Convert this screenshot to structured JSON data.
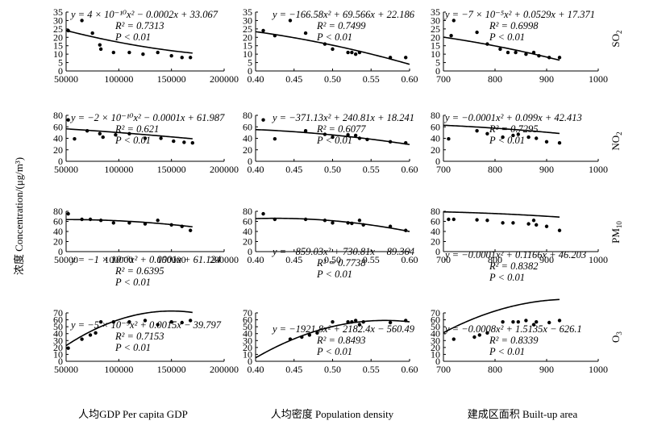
{
  "figure": {
    "y_axis_label": "浓度 Concentration/(μg/m³)",
    "x_axis_labels": [
      "人均GDP Per capita GDP",
      "人均密度 Population density",
      "建成区面积 Built-up area"
    ],
    "row_labels": [
      {
        "base": "SO",
        "sub": "2"
      },
      {
        "base": "NO",
        "sub": "2"
      },
      {
        "base": "PM",
        "sub": "10"
      },
      {
        "base": "O",
        "sub": "3"
      }
    ]
  },
  "chart_data": [
    {
      "type": "scatter",
      "id": "gdp-so2",
      "row": 0,
      "col": 0,
      "xlim": [
        50000,
        200000
      ],
      "ylim": [
        0,
        35
      ],
      "xticks": [
        "50000",
        "100000",
        "150000",
        "200000"
      ],
      "yticks": [
        "0",
        "5",
        "10",
        "15",
        "20",
        "25",
        "30",
        "35"
      ],
      "points": [
        [
          52000,
          24
        ],
        [
          65000,
          30
        ],
        [
          75000,
          22.5
        ],
        [
          82000,
          15.5
        ],
        [
          83000,
          13
        ],
        [
          95000,
          11
        ],
        [
          110000,
          11
        ],
        [
          123000,
          10
        ],
        [
          137000,
          11
        ],
        [
          150000,
          9
        ],
        [
          160000,
          8
        ],
        [
          168000,
          8
        ]
      ],
      "fit": {
        "a": 4e-10,
        "b": -0.0002,
        "c": 33.067
      },
      "equation_lines": [
        "y = 4 × 10⁻¹⁰x² − 0.0002x + 33.067",
        "R² = 0.7313",
        "P < 0.01"
      ]
    },
    {
      "type": "scatter",
      "id": "density-so2",
      "row": 0,
      "col": 1,
      "xlim": [
        0.4,
        0.6
      ],
      "ylim": [
        0,
        35
      ],
      "xticks": [
        "0.40",
        "0.45",
        "0.50",
        "0.55",
        "0.60"
      ],
      "yticks": [
        "0",
        "5",
        "10",
        "15",
        "20",
        "25",
        "30",
        "35"
      ],
      "points": [
        [
          0.41,
          24
        ],
        [
          0.425,
          21
        ],
        [
          0.445,
          30
        ],
        [
          0.465,
          22.5
        ],
        [
          0.49,
          16
        ],
        [
          0.5,
          13
        ],
        [
          0.52,
          11
        ],
        [
          0.525,
          11
        ],
        [
          0.53,
          10
        ],
        [
          0.535,
          11
        ],
        [
          0.575,
          8
        ],
        [
          0.595,
          8
        ]
      ],
      "fit": {
        "a": -166.58,
        "b": 69.566,
        "c": 22.186
      },
      "equation_lines": [
        "y = −166.58x² + 69.566x + 22.186",
        "R² = 0.7499",
        "P < 0.01"
      ]
    },
    {
      "type": "scatter",
      "id": "area-so2",
      "row": 0,
      "col": 2,
      "xlim": [
        700,
        1000
      ],
      "ylim": [
        0,
        35
      ],
      "xticks": [
        "700",
        "800",
        "900",
        "1000"
      ],
      "yticks": [
        "0",
        "5",
        "10",
        "15",
        "20",
        "25",
        "30",
        "35"
      ],
      "points": [
        [
          715,
          21
        ],
        [
          720,
          30
        ],
        [
          765,
          23
        ],
        [
          785,
          16
        ],
        [
          810,
          13
        ],
        [
          825,
          11
        ],
        [
          840,
          11
        ],
        [
          860,
          10
        ],
        [
          875,
          11
        ],
        [
          885,
          9
        ],
        [
          905,
          8
        ],
        [
          925,
          8
        ]
      ],
      "fit": {
        "a": -7e-05,
        "b": 0.0529,
        "c": 17.371
      },
      "equation_lines": [
        "y = −7 × 10⁻⁵x² + 0.0529x + 17.371",
        "R² = 0.6998",
        "P < 0.01"
      ]
    },
    {
      "type": "scatter",
      "id": "gdp-no2",
      "row": 1,
      "col": 0,
      "xlim": [
        50000,
        200000
      ],
      "ylim": [
        0,
        80
      ],
      "xticks": [
        "50000",
        "100000",
        "150000",
        "200000"
      ],
      "yticks": [
        "0",
        "20",
        "40",
        "60",
        "80"
      ],
      "points": [
        [
          52000,
          72
        ],
        [
          58000,
          39
        ],
        [
          70000,
          53
        ],
        [
          82000,
          48
        ],
        [
          85000,
          42
        ],
        [
          97000,
          46
        ],
        [
          110000,
          48
        ],
        [
          125000,
          40
        ],
        [
          140000,
          40
        ],
        [
          152000,
          35
        ],
        [
          162000,
          33
        ],
        [
          170000,
          32
        ]
      ],
      "fit": {
        "a": -2e-10,
        "b": -0.0001,
        "c": 61.987
      },
      "equation_lines": [
        "y = −2 × 10⁻¹⁰x² − 0.0001x + 61.987",
        "R² = 0.621",
        "P < 0.01"
      ]
    },
    {
      "type": "scatter",
      "id": "density-no2",
      "row": 1,
      "col": 1,
      "xlim": [
        0.4,
        0.6
      ],
      "ylim": [
        0,
        80
      ],
      "xticks": [
        "0.40",
        "0.45",
        "0.50",
        "0.55",
        "0.60"
      ],
      "yticks": [
        "0",
        "20",
        "40",
        "60",
        "80"
      ],
      "points": [
        [
          0.41,
          72
        ],
        [
          0.425,
          39
        ],
        [
          0.465,
          53
        ],
        [
          0.49,
          47
        ],
        [
          0.5,
          42
        ],
        [
          0.52,
          46
        ],
        [
          0.53,
          45
        ],
        [
          0.535,
          40
        ],
        [
          0.545,
          38
        ],
        [
          0.575,
          34
        ],
        [
          0.595,
          32
        ]
      ],
      "fit": {
        "a": -371.13,
        "b": 240.81,
        "c": 18.241
      },
      "equation_lines": [
        "y = −371.13x² + 240.81x + 18.241",
        "R² = 0.6077",
        "P < 0.01"
      ]
    },
    {
      "type": "scatter",
      "id": "area-no2",
      "row": 1,
      "col": 2,
      "xlim": [
        700,
        1000
      ],
      "ylim": [
        0,
        80
      ],
      "xticks": [
        "700",
        "800",
        "900",
        "1000"
      ],
      "yticks": [
        "0",
        "20",
        "40",
        "60",
        "80"
      ],
      "points": [
        [
          710,
          39
        ],
        [
          765,
          53
        ],
        [
          785,
          48
        ],
        [
          815,
          42
        ],
        [
          835,
          45
        ],
        [
          845,
          47
        ],
        [
          865,
          42
        ],
        [
          880,
          40
        ],
        [
          900,
          34
        ],
        [
          925,
          32
        ]
      ],
      "fit": {
        "a": -0.0001,
        "b": 0.099,
        "c": 42.413
      },
      "equation_lines": [
        "y = −0.0001x² + 0.099x + 42.413",
        "R² = 0.7295",
        "P < 0.01"
      ]
    },
    {
      "type": "scatter",
      "id": "gdp-pm10",
      "row": 2,
      "col": 0,
      "xlim": [
        50000,
        200000
      ],
      "ylim": [
        0,
        80
      ],
      "xticks": [
        "50000",
        "100000",
        "150000",
        "200000"
      ],
      "yticks": [
        "0",
        "20",
        "40",
        "60",
        "80"
      ],
      "points": [
        [
          52000,
          75
        ],
        [
          65000,
          64
        ],
        [
          73000,
          64
        ],
        [
          83000,
          62
        ],
        [
          95000,
          57
        ],
        [
          110000,
          57
        ],
        [
          125000,
          55
        ],
        [
          137000,
          62
        ],
        [
          150000,
          53
        ],
        [
          160000,
          50
        ],
        [
          168000,
          42
        ]
      ],
      "fit": {
        "a": -1e-09,
        "b": 0.0001,
        "c": 61.124
      },
      "equation_lines": [
        "y = −1 × 10⁻⁹x² + 0.0001x + 61.124",
        "R² = 0.6395",
        "P < 0.01"
      ]
    },
    {
      "type": "scatter",
      "id": "density-pm10",
      "row": 2,
      "col": 1,
      "xlim": [
        0.4,
        0.6
      ],
      "ylim": [
        0,
        80
      ],
      "xticks": [
        "0.40",
        "0.45",
        "0.50",
        "0.55",
        "0.60"
      ],
      "yticks": [
        "0",
        "20",
        "40",
        "60",
        "80"
      ],
      "points": [
        [
          0.41,
          75
        ],
        [
          0.425,
          64
        ],
        [
          0.465,
          64
        ],
        [
          0.49,
          62
        ],
        [
          0.5,
          57
        ],
        [
          0.52,
          57
        ],
        [
          0.525,
          56
        ],
        [
          0.535,
          62
        ],
        [
          0.54,
          53
        ],
        [
          0.575,
          50
        ],
        [
          0.595,
          42
        ]
      ],
      "fit": {
        "a": -859.03,
        "b": 730.81,
        "c": -89.364
      },
      "equation_lines": [
        "y = −859.03x² + 730.81x − 89.364",
        "R² = 0.7738",
        "P < 0.01"
      ]
    },
    {
      "type": "scatter",
      "id": "area-pm10",
      "row": 2,
      "col": 2,
      "xlim": [
        700,
        1000
      ],
      "ylim": [
        0,
        80
      ],
      "xticks": [
        "700",
        "800",
        "900",
        "1000"
      ],
      "yticks": [
        "0",
        "20",
        "40",
        "60",
        "80"
      ],
      "points": [
        [
          710,
          64
        ],
        [
          720,
          64
        ],
        [
          765,
          63
        ],
        [
          785,
          62
        ],
        [
          815,
          57
        ],
        [
          835,
          57
        ],
        [
          865,
          55
        ],
        [
          875,
          62
        ],
        [
          880,
          53
        ],
        [
          900,
          50
        ],
        [
          925,
          42
        ]
      ],
      "fit": {
        "a": -0.0001,
        "b": 0.1166,
        "c": 46.203
      },
      "equation_lines": [
        "y = −0.0001x² + 0.1166x + 46.203",
        "R² = 0.8382",
        "P < 0.01"
      ]
    },
    {
      "type": "scatter",
      "id": "gdp-o3",
      "row": 3,
      "col": 0,
      "xlim": [
        50000,
        200000
      ],
      "ylim": [
        0,
        70
      ],
      "xticks": [
        "50000",
        "100000",
        "150000",
        "200000"
      ],
      "yticks": [
        "0",
        "10",
        "20",
        "30",
        "40",
        "50",
        "60",
        "70"
      ],
      "points": [
        [
          52000,
          19
        ],
        [
          65000,
          32
        ],
        [
          73000,
          38
        ],
        [
          78000,
          41
        ],
        [
          83000,
          57
        ],
        [
          95000,
          57
        ],
        [
          110000,
          57
        ],
        [
          125000,
          59
        ],
        [
          137000,
          53
        ],
        [
          150000,
          57
        ],
        [
          160000,
          56
        ],
        [
          168000,
          59
        ]
      ],
      "fit": {
        "a": -5e-09,
        "b": 0.0015,
        "c": -39.797
      },
      "equation_lines": [
        "y = −5 × 10⁻⁹x² + 0.0015x − 39.797",
        "R² = 0.7153",
        "P < 0.01"
      ]
    },
    {
      "type": "scatter",
      "id": "density-o3",
      "row": 3,
      "col": 1,
      "xlim": [
        0.4,
        0.6
      ],
      "ylim": [
        0,
        70
      ],
      "xticks": [
        "0.40",
        "0.45",
        "0.50",
        "0.55",
        "0.60"
      ],
      "yticks": [
        "0",
        "10",
        "20",
        "30",
        "40",
        "50",
        "60",
        "70"
      ],
      "points": [
        [
          0.445,
          32
        ],
        [
          0.46,
          35
        ],
        [
          0.47,
          38
        ],
        [
          0.48,
          41
        ],
        [
          0.5,
          57
        ],
        [
          0.52,
          57
        ],
        [
          0.525,
          57
        ],
        [
          0.53,
          59
        ],
        [
          0.535,
          53
        ],
        [
          0.54,
          57
        ],
        [
          0.575,
          56
        ],
        [
          0.595,
          59
        ]
      ],
      "fit": {
        "a": -1921.8,
        "b": 2182.4,
        "c": -560.49
      },
      "equation_lines": [
        "y = −1921.8x² + 2182.4x − 560.49",
        "R² = 0.8493",
        "P < 0.01"
      ]
    },
    {
      "type": "scatter",
      "id": "area-o3",
      "row": 3,
      "col": 2,
      "xlim": [
        700,
        1000
      ],
      "ylim": [
        0,
        70
      ],
      "xticks": [
        "700",
        "800",
        "900",
        "1000"
      ],
      "yticks": [
        "0",
        "10",
        "20",
        "30",
        "40",
        "50",
        "60",
        "70"
      ],
      "points": [
        [
          720,
          32
        ],
        [
          760,
          35
        ],
        [
          770,
          38
        ],
        [
          785,
          41
        ],
        [
          815,
          57
        ],
        [
          835,
          57
        ],
        [
          845,
          57
        ],
        [
          860,
          59
        ],
        [
          875,
          53
        ],
        [
          880,
          57
        ],
        [
          905,
          56
        ],
        [
          925,
          59
        ]
      ],
      "fit": {
        "a": -0.0008,
        "b": 1.5135,
        "c": -626.1
      },
      "equation_lines": [
        "y = −0.0008x² + 1.5135x − 626.1",
        "R² = 0.8339",
        "P < 0.01"
      ]
    }
  ]
}
